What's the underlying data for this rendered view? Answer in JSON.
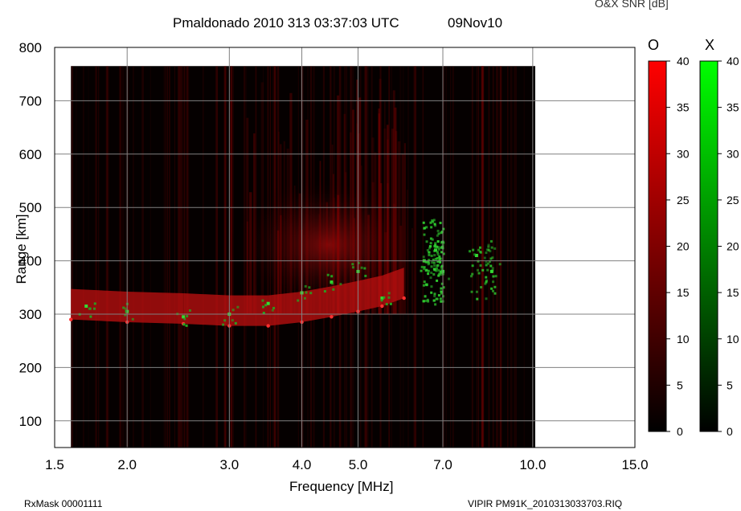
{
  "header": {
    "title": "Pmaldonado 2010 313 03:37:03 UTC",
    "date": "09Nov10",
    "snr_label": "O&X SNR [dB]"
  },
  "footer": {
    "rxmask": "RxMask 00001111",
    "filename": "VIPIR  PM91K_2010313033703.RIQ"
  },
  "chart_data": {
    "type": "heatmap",
    "title": "Pmaldonado 2010 313 03:37:03 UTC",
    "xlabel": "Frequency [MHz]",
    "ylabel": "Range [km]",
    "x_scale": "log",
    "xlim": [
      1.5,
      15.0
    ],
    "ylim": [
      50,
      800
    ],
    "x_ticks": [
      "1.5",
      "2.0",
      "3.0",
      "4.0",
      "5.0",
      "7.0",
      "10.0",
      "15.0"
    ],
    "x_tick_values": [
      1.5,
      2.0,
      3.0,
      4.0,
      5.0,
      7.0,
      10.0,
      15.0
    ],
    "y_ticks": [
      "100",
      "200",
      "300",
      "400",
      "500",
      "600",
      "700",
      "800"
    ],
    "y_tick_values": [
      100,
      200,
      300,
      400,
      500,
      600,
      700,
      800
    ],
    "grid": true,
    "data_extent": {
      "freq_mhz": [
        1.6,
        10.1
      ],
      "range_km": [
        50,
        765
      ]
    },
    "o_trace": {
      "freq_mhz": [
        1.6,
        2.0,
        2.5,
        3.0,
        3.5,
        4.0,
        4.5,
        5.0,
        5.5,
        6.0
      ],
      "virtual_range_km": [
        290,
        285,
        282,
        278,
        278,
        285,
        295,
        305,
        315,
        330
      ]
    },
    "x_trace": {
      "freq_mhz": [
        1.7,
        2.0,
        2.5,
        3.0,
        3.5,
        4.0,
        4.5,
        5.0,
        5.5,
        6.5,
        6.8,
        7.0,
        8.0,
        8.5
      ],
      "virtual_range_km": [
        315,
        305,
        295,
        300,
        320,
        340,
        360,
        380,
        330,
        400,
        420,
        380,
        410,
        380
      ]
    },
    "colorbars": [
      {
        "name": "O",
        "min": 0,
        "max": 40,
        "ticks": [
          "0",
          "5",
          "10",
          "15",
          "20",
          "25",
          "30",
          "35",
          "40"
        ],
        "color": "#ff0000"
      },
      {
        "name": "X",
        "min": 0,
        "max": 40,
        "ticks": [
          "0",
          "5",
          "10",
          "15",
          "20",
          "25",
          "30",
          "35",
          "40"
        ],
        "color": "#00ff00"
      }
    ]
  }
}
